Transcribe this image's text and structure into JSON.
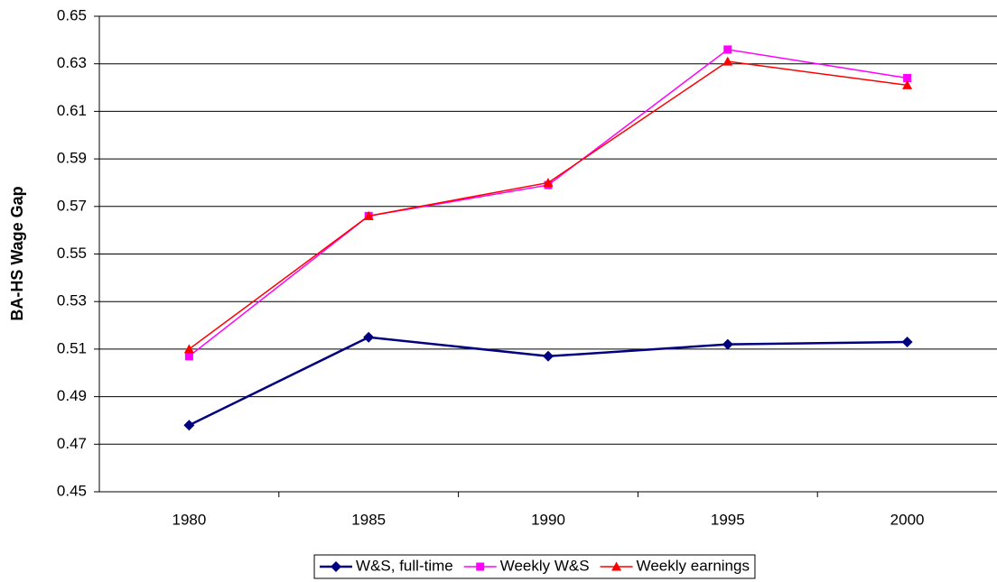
{
  "chart_data": {
    "type": "line",
    "y_label": "BA-HS Wage Gap",
    "categories": [
      "1980",
      "1985",
      "1990",
      "1995",
      "2000"
    ],
    "series": [
      {
        "name": "W&S, full-time",
        "color": "#000080",
        "marker": "diamond",
        "values": [
          0.478,
          0.515,
          0.507,
          0.512,
          0.513
        ]
      },
      {
        "name": "Weekly W&S",
        "color": "#ff00ff",
        "marker": "square",
        "values": [
          0.507,
          0.566,
          0.579,
          0.636,
          0.624
        ]
      },
      {
        "name": "Weekly earnings",
        "color": "#ff0000",
        "marker": "triangle",
        "values": [
          0.51,
          0.566,
          0.58,
          0.631,
          0.621
        ]
      }
    ],
    "ylim": [
      0.45,
      0.65
    ],
    "yticks": [
      0.45,
      0.47,
      0.49,
      0.51,
      0.53,
      0.55,
      0.57,
      0.59,
      0.61,
      0.63,
      0.65
    ],
    "grid": true,
    "legend": "bottom"
  }
}
